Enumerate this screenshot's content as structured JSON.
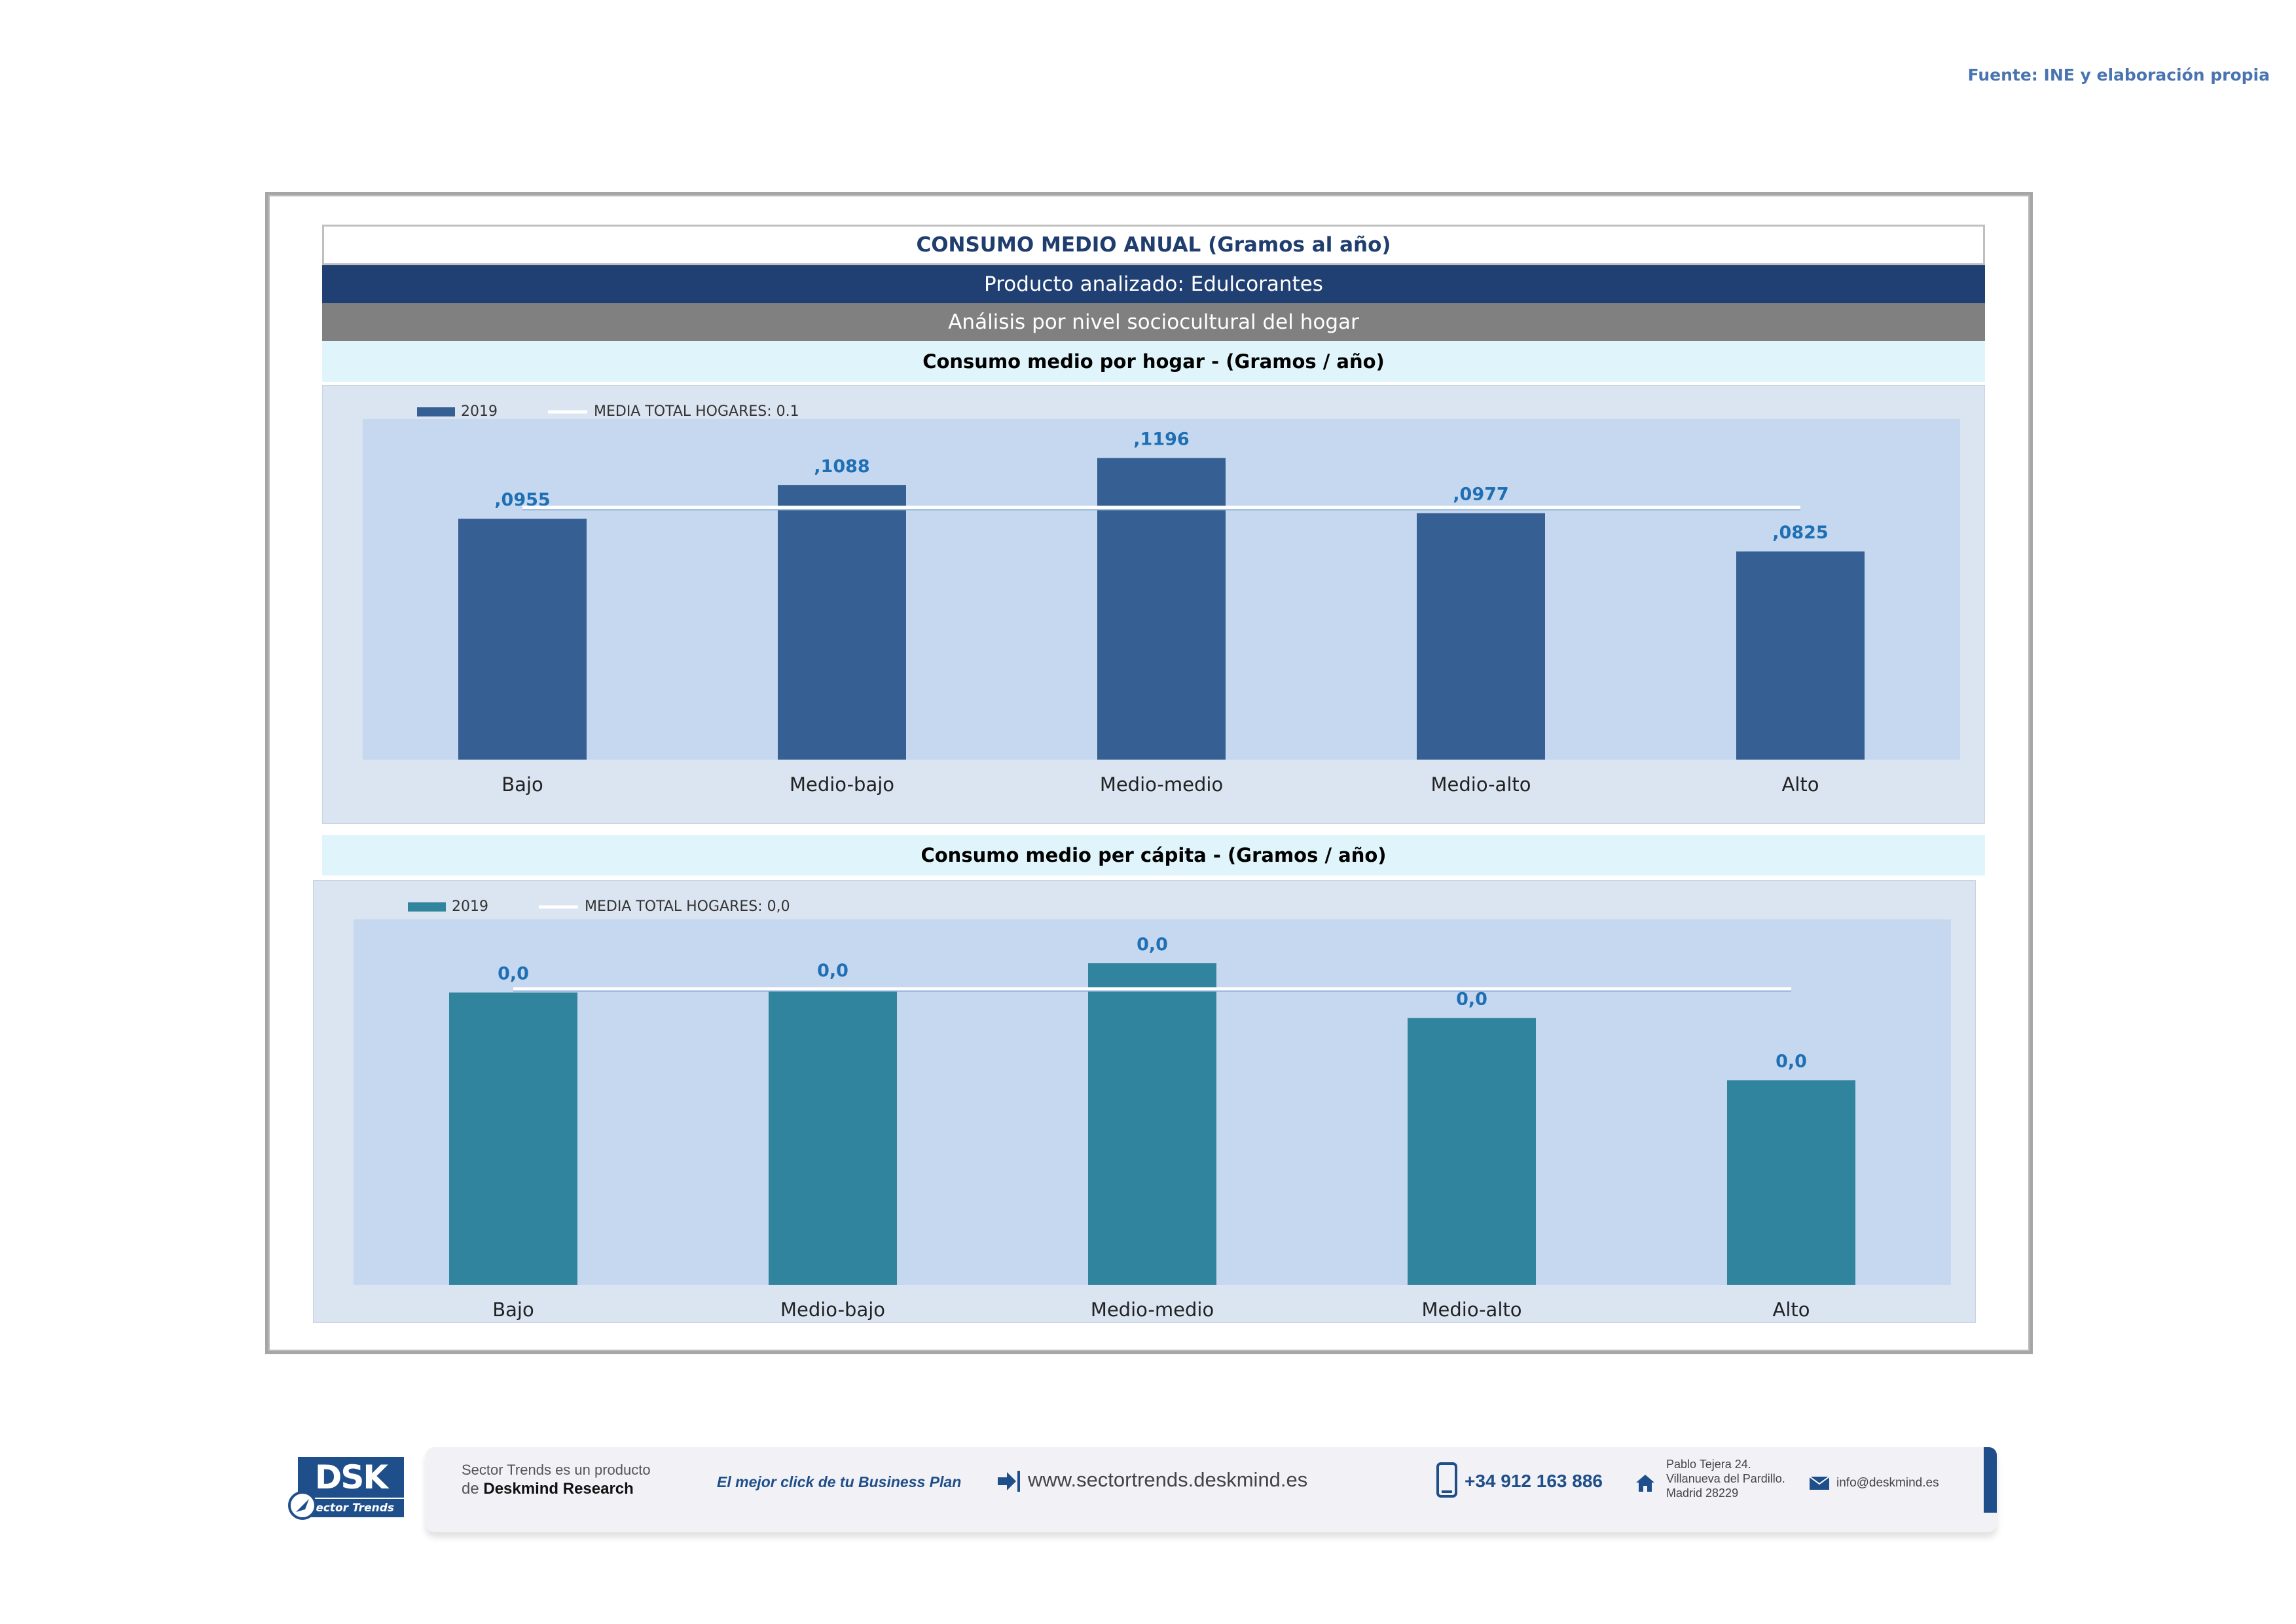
{
  "source": "Fuente: INE y elaboración propia",
  "header": {
    "title": "CONSUMO MEDIO ANUAL (Gramos al año)",
    "product": "Producto analizado: Edulcorantes",
    "analysis": "Análisis por nivel sociocultural del hogar",
    "subtitle_hogar": "Consumo medio por hogar -  (Gramos / año)",
    "subtitle_capita": "Consumo medio per cápita -  (Gramos / año)"
  },
  "colors": {
    "bar_hogar": "#365f93",
    "bar_capita": "#30849d",
    "label_value": "#1f6fb5",
    "plot_bg": "#c5d8ef",
    "panel_bg": "#dbe5f1",
    "dark_band": "#203f72",
    "grey_band": "#808080",
    "light_band": "#e0f5fb"
  },
  "chart_data": [
    {
      "type": "bar",
      "title": "Consumo medio por hogar -  (Gramos / año)",
      "categories": [
        "Bajo",
        "Medio-bajo",
        "Medio-medio",
        "Medio-alto",
        "Alto"
      ],
      "series": [
        {
          "name": "2019",
          "values": [
            0.0955,
            0.1088,
            0.1196,
            0.0977,
            0.0825
          ],
          "data_labels": [
            ",0955",
            ",1088",
            ",1196",
            ",0977",
            ",0825"
          ]
        }
      ],
      "reference_line": {
        "name": "MEDIA TOTAL  HOGARES:",
        "value_label": "0.1",
        "value": 0.1
      },
      "ylim": [
        0,
        0.135
      ],
      "legend": "top-left",
      "grid": false
    },
    {
      "type": "bar",
      "title": "Consumo medio per cápita -  (Gramos / año)",
      "categories": [
        "Bajo",
        "Medio-bajo",
        "Medio-medio",
        "Medio-alto",
        "Alto"
      ],
      "series": [
        {
          "name": "2019",
          "values": [
            0.04,
            0.0404,
            0.044,
            0.0365,
            0.028
          ],
          "data_labels": [
            "0,0",
            "0,0",
            "0,0",
            "0,0",
            "0,0"
          ]
        }
      ],
      "reference_line": {
        "name": "MEDIA TOTAL  HOGARES:",
        "value_label": "0,0",
        "value": 0.0405
      },
      "ylim": [
        0,
        0.05
      ],
      "legend": "top-left",
      "grid": false
    }
  ],
  "footer": {
    "logo_text": "DSK",
    "logo_sub": "Sector Trends",
    "tagline_1": "Sector Trends es un producto",
    "tagline_2_prefix": "de ",
    "tagline_2_brand": "Deskmind Research",
    "slogan": "El mejor click de tu Business Plan",
    "website": "www.sectortrends.deskmind.es",
    "phone": "+34 912 163 886",
    "address_1": "Pablo Tejera 24.",
    "address_2": "Villanueva del Pardillo.",
    "address_3": "Madrid 28229",
    "email": "info@deskmind.es"
  }
}
